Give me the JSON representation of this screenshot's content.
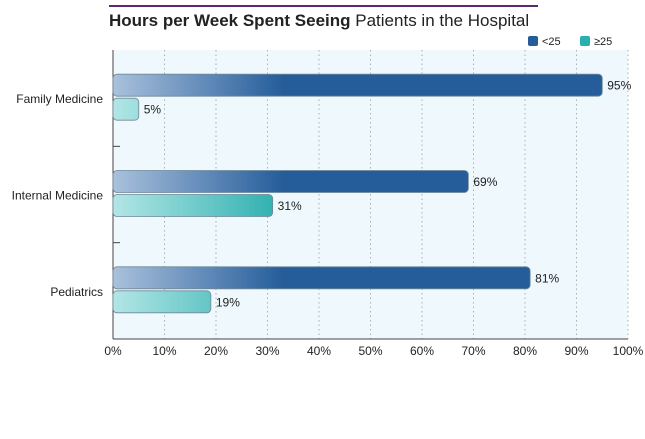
{
  "chart_data": {
    "type": "bar",
    "orientation": "horizontal",
    "title_bold": "Hours per Week Spent Seeing",
    "title_rest": "Patients in the Hospital",
    "categories": [
      "Family Medicine",
      "Internal Medicine",
      "Pediatrics"
    ],
    "series": [
      {
        "name": "<25",
        "values": [
          95,
          69,
          81
        ],
        "labels": [
          "95%",
          "69%",
          "81%"
        ],
        "color": "#255d9b",
        "color_light": "#a9c1dc"
      },
      {
        "name": "≥25",
        "values": [
          5,
          31,
          19
        ],
        "labels": [
          "5%",
          "31%",
          "19%"
        ],
        "color": "#2aaeae",
        "color_light": "#b3e6e6"
      }
    ],
    "xlim": [
      0,
      100
    ],
    "xticks": [
      "0%",
      "10%",
      "20%",
      "30%",
      "40%",
      "50%",
      "60%",
      "70%",
      "80%",
      "90%",
      "100%"
    ],
    "grid": true,
    "legend_position": "top-right",
    "plot_background": "#eef8fd"
  }
}
